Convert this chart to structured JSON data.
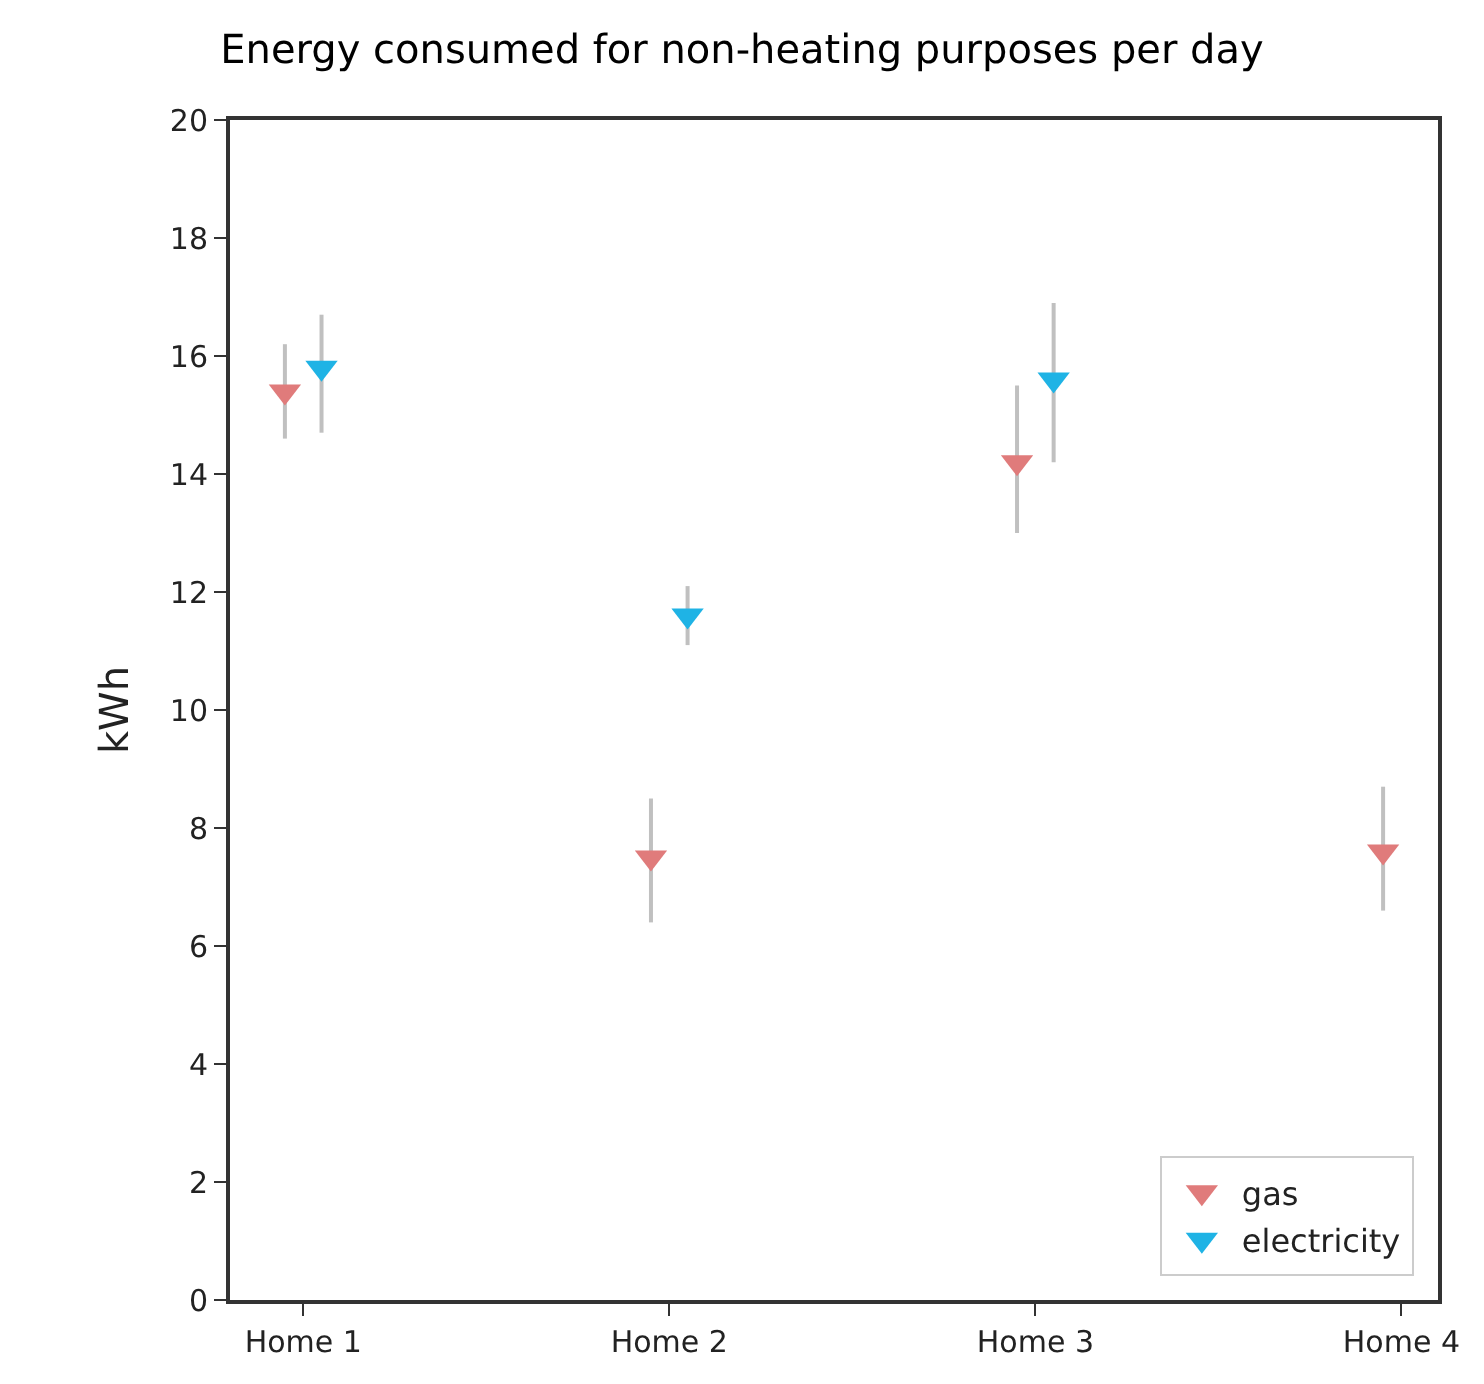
{
  "chart_data": {
    "type": "scatter",
    "title": "Energy consumed for non-heating purposes per day",
    "ylabel": "kWh",
    "categories": [
      "Home 1",
      "Home 2",
      "Home 3",
      "Home 4"
    ],
    "series": [
      {
        "name": "gas",
        "color": "#e07b7b",
        "values": [
          15.4,
          7.5,
          14.2,
          7.6
        ],
        "errors": [
          [
            14.6,
            16.2
          ],
          [
            6.4,
            8.5
          ],
          [
            13.0,
            15.5
          ],
          [
            6.6,
            8.7
          ]
        ]
      },
      {
        "name": "electricity",
        "color": "#1fb3e5",
        "values": [
          15.8,
          11.6,
          15.6,
          null
        ],
        "errors": [
          [
            14.7,
            16.7
          ],
          [
            11.1,
            12.1
          ],
          [
            14.2,
            16.9
          ],
          null
        ]
      }
    ],
    "ylim": [
      0,
      20
    ],
    "yticks": [
      0,
      2,
      4,
      6,
      8,
      10,
      12,
      14,
      16,
      18,
      20
    ],
    "legend": "bottom right",
    "marker": "triangle"
  }
}
